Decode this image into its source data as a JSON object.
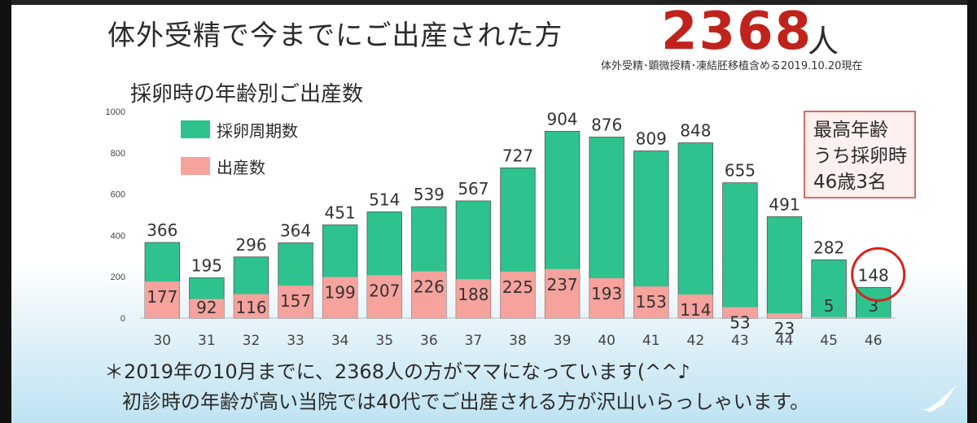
{
  "header": {
    "title": "体外受精で今までにご出産された方",
    "total": "2368",
    "total_unit": "人",
    "note": "体外受精･顕微授精･凍結胚移植含める2019.10.20現在"
  },
  "chart_data": {
    "type": "bar",
    "title": "採卵時の年齢別ご出産数",
    "xlabel": "",
    "ylabel": "",
    "ylim": [
      0,
      1000
    ],
    "yticks": [
      0,
      200,
      400,
      600,
      800,
      1000
    ],
    "grid": false,
    "legend_position": "top-left",
    "categories": [
      "30",
      "31",
      "32",
      "33",
      "34",
      "35",
      "36",
      "37",
      "38",
      "39",
      "40",
      "41",
      "42",
      "43",
      "44",
      "45",
      "46"
    ],
    "series": [
      {
        "name": "採卵周期数",
        "color": "#2ec28e",
        "values": [
          366,
          195,
          296,
          364,
          451,
          514,
          539,
          567,
          727,
          904,
          876,
          809,
          848,
          655,
          491,
          282,
          148
        ]
      },
      {
        "name": "出産数",
        "color": "#f6a29d",
        "values": [
          177,
          92,
          116,
          157,
          199,
          207,
          226,
          188,
          225,
          237,
          193,
          153,
          114,
          53,
          23,
          5,
          3
        ]
      }
    ],
    "highlight": {
      "category": "46",
      "color": "#d9231c"
    }
  },
  "callout": {
    "lines": [
      "最高年齢",
      "うち採卵時",
      "46歳3名"
    ]
  },
  "footnotes": {
    "line1": "＊2019年の10月までに、2368人の方がママになっています(^^♪",
    "line2": "初診時の年齢が高い当院では40代でご出産される方が沢山いらっしゃいます。"
  }
}
